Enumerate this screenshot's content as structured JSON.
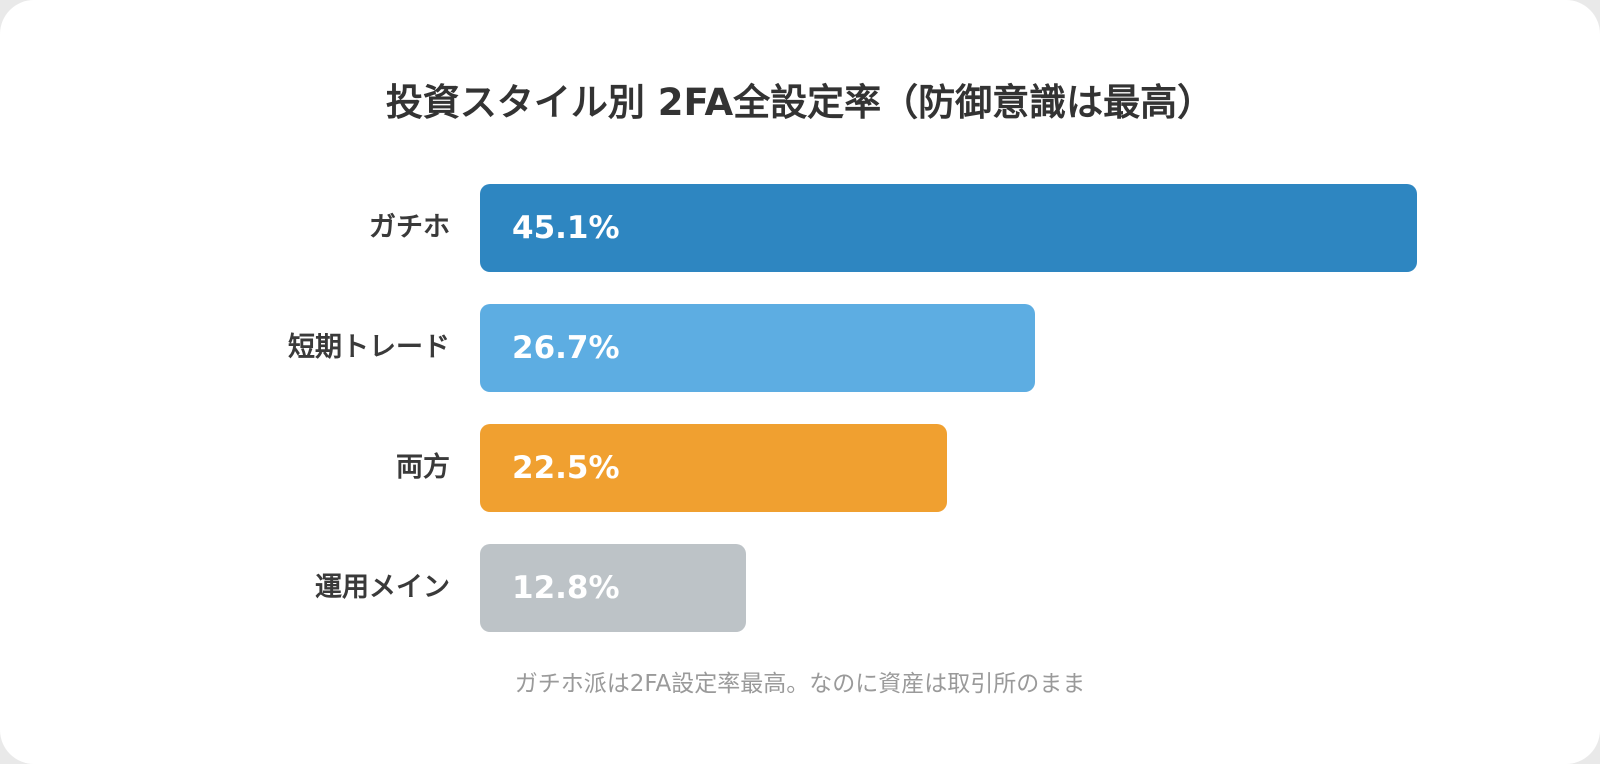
{
  "chart_data": {
    "type": "bar",
    "orientation": "horizontal",
    "title": "投資スタイル別 2FA全設定率（防御意識は最高）",
    "categories": [
      "ガチホ",
      "短期トレード",
      "両方",
      "運用メイン"
    ],
    "values": [
      45.1,
      26.7,
      22.5,
      12.8
    ],
    "value_labels": [
      "45.1%",
      "26.7%",
      "22.5%",
      "12.8%"
    ],
    "colors": [
      "#2e86c1",
      "#5dade2",
      "#f0a030",
      "#bdc3c7"
    ],
    "xlim": [
      0,
      45.1
    ],
    "grid": false,
    "caption": "ガチホ派は2FA設定率最高。なのに資産は取引所のまま"
  }
}
